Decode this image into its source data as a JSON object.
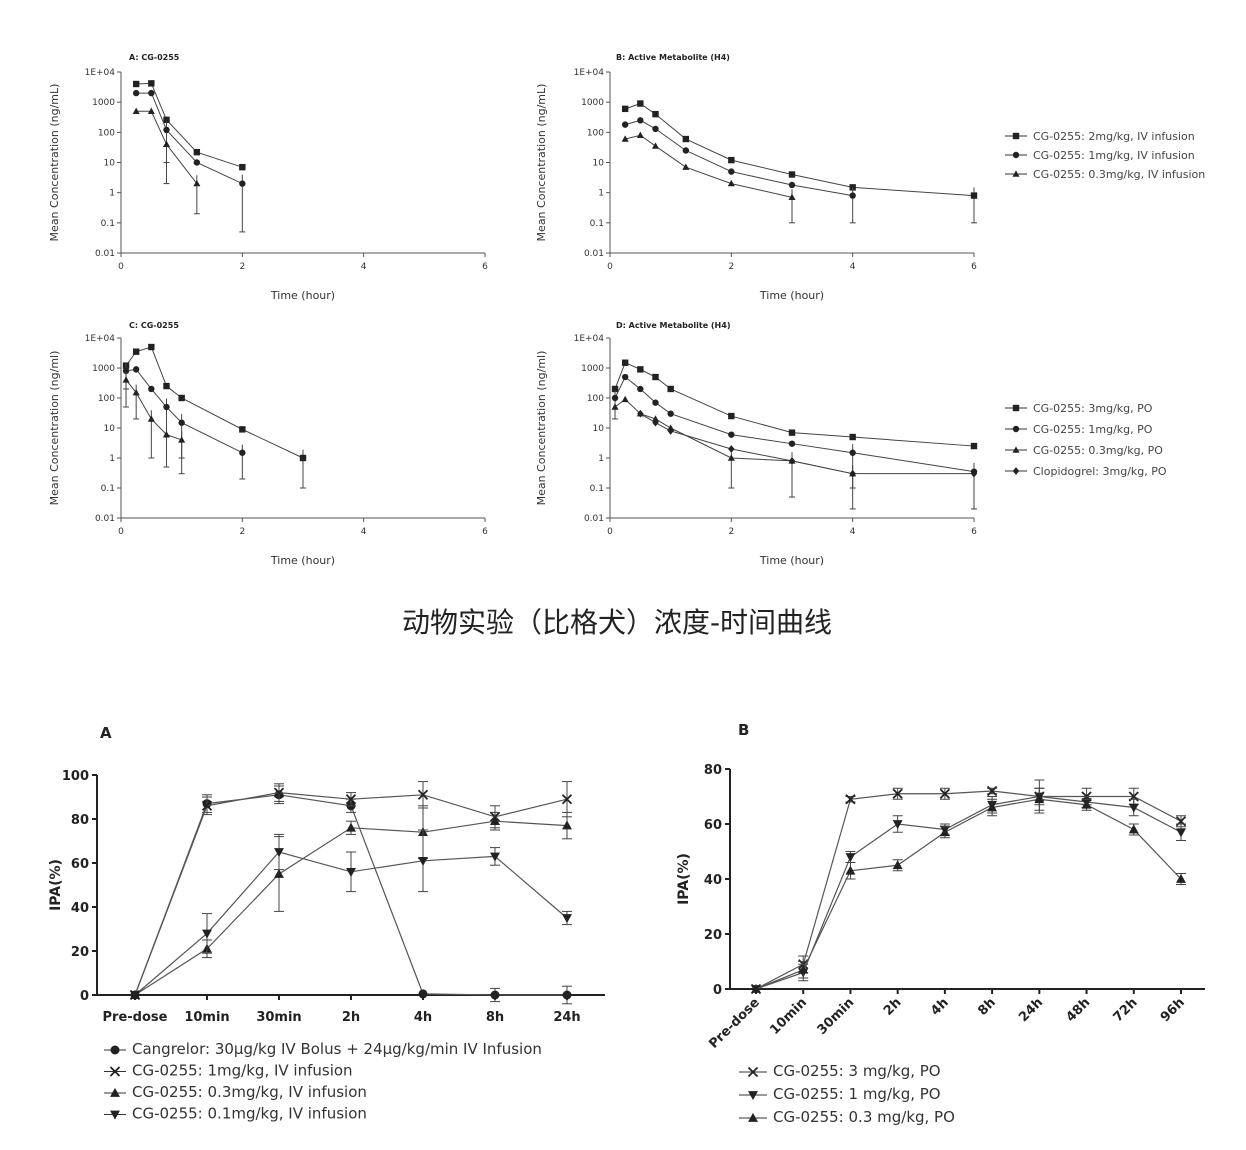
{
  "caption": "动物实验（比格犬）浓度-时间曲线",
  "chart_data": [
    {
      "panel": "A",
      "title": "A: CG-0255",
      "type": "line",
      "xlabel": "Time (hour)",
      "ylabel": "Mean Concentration (ng/mL)",
      "yscale": "log",
      "ylim": [
        0.01,
        10000
      ],
      "xlim": [
        0,
        6
      ],
      "xticks": [
        "0",
        "2",
        "4",
        "6"
      ],
      "yticks": [
        "0.01",
        "0.1",
        "1",
        "10",
        "100",
        "1000",
        "1E+04"
      ],
      "series": [
        {
          "name": "CG-0255: 2mg/kg, IV infusion",
          "marker": "square",
          "x": [
            0.25,
            0.5,
            0.75,
            1.25,
            2
          ],
          "y": [
            4000,
            4200,
            260,
            22,
            7
          ],
          "err": [
            0,
            0,
            0,
            0,
            0
          ]
        },
        {
          "name": "CG-0255: 1mg/kg, IV infusion",
          "marker": "circle",
          "x": [
            0.25,
            0.5,
            0.75,
            1.25,
            2
          ],
          "y": [
            2000,
            2000,
            120,
            10,
            2
          ],
          "err": [
            0,
            0,
            110,
            0,
            1.95
          ]
        },
        {
          "name": "CG-0255: 0.3mg/kg, IV infusion",
          "marker": "triangle",
          "x": [
            0.25,
            0.5,
            0.75,
            1.25,
            2
          ],
          "y": [
            500,
            500,
            40,
            2,
            0
          ],
          "err": [
            0,
            0,
            38,
            1.8,
            0
          ]
        }
      ]
    },
    {
      "panel": "B",
      "title": "B: Active Metabolite (H4)",
      "type": "line",
      "xlabel": "Time (hour)",
      "ylabel": "Mean Concentration (ng/mL)",
      "yscale": "log",
      "ylim": [
        0.01,
        10000
      ],
      "xlim": [
        0,
        6
      ],
      "xticks": [
        "0",
        "2",
        "4",
        "6"
      ],
      "yticks": [
        "0.01",
        "0.1",
        "1",
        "10",
        "100",
        "1000",
        "1E+04"
      ],
      "series": [
        {
          "name": "CG-0255: 2mg/kg, IV infusion",
          "marker": "square",
          "x": [
            0.25,
            0.5,
            0.75,
            1.25,
            2,
            3,
            4,
            6
          ],
          "y": [
            600,
            900,
            400,
            60,
            12,
            4,
            1.5,
            0.8
          ],
          "err": [
            0,
            0,
            0,
            0,
            0,
            0,
            0,
            0.7
          ]
        },
        {
          "name": "CG-0255: 1mg/kg, IV infusion",
          "marker": "circle",
          "x": [
            0.25,
            0.5,
            0.75,
            1.25,
            2,
            3,
            4,
            6
          ],
          "y": [
            180,
            250,
            130,
            25,
            5,
            1.8,
            0.8,
            0
          ],
          "err": [
            0,
            0,
            0,
            0,
            0,
            0,
            0.7,
            0
          ]
        },
        {
          "name": "CG-0255: 0.3mg/kg, IV infusion",
          "marker": "triangle",
          "x": [
            0.25,
            0.5,
            0.75,
            1.25,
            2,
            3
          ],
          "y": [
            60,
            80,
            35,
            7,
            2,
            0.7
          ],
          "err": [
            0,
            0,
            0,
            0,
            0,
            0.6
          ]
        }
      ]
    },
    {
      "panel": "C",
      "title": "C: CG-0255",
      "type": "line",
      "xlabel": "Time (hour)",
      "ylabel": "Mean Concentration (ng/ml)",
      "yscale": "log",
      "ylim": [
        0.01,
        10000
      ],
      "xlim": [
        0,
        6
      ],
      "xticks": [
        "0",
        "2",
        "4",
        "6"
      ],
      "yticks": [
        "0.01",
        "0.1",
        "1",
        "10",
        "100",
        "1000",
        "1E+04"
      ],
      "series": [
        {
          "name": "CG-0255: 3mg/kg, PO",
          "marker": "square",
          "x": [
            0.083,
            0.25,
            0.5,
            0.75,
            1,
            2,
            3
          ],
          "y": [
            1200,
            3500,
            5000,
            250,
            100,
            9,
            1
          ],
          "err": [
            0,
            0,
            0,
            0,
            0,
            0,
            0.9
          ]
        },
        {
          "name": "CG-0255: 1mg/kg, PO",
          "marker": "circle",
          "x": [
            0.083,
            0.25,
            0.5,
            0.75,
            1,
            2
          ],
          "y": [
            800,
            900,
            200,
            50,
            15,
            1.5
          ],
          "err": [
            600,
            0,
            0,
            45,
            14,
            1.3
          ]
        },
        {
          "name": "CG-0255: 0.3mg/kg, PO",
          "marker": "triangle",
          "x": [
            0.083,
            0.25,
            0.5,
            0.75,
            1
          ],
          "y": [
            400,
            150,
            20,
            6,
            4
          ],
          "err": [
            350,
            130,
            19,
            5.5,
            3.7
          ]
        }
      ]
    },
    {
      "panel": "D",
      "title": "D: Active Metabolite (H4)",
      "type": "line",
      "xlabel": "Time (hour)",
      "ylabel": "Mean Concentration (ng/ml)",
      "yscale": "log",
      "ylim": [
        0.01,
        10000
      ],
      "xlim": [
        0,
        6
      ],
      "xticks": [
        "0",
        "2",
        "4",
        "6"
      ],
      "yticks": [
        "0.01",
        "0.1",
        "1",
        "10",
        "100",
        "1000",
        "1E+04"
      ],
      "series": [
        {
          "name": "CG-0255: 3mg/kg, PO",
          "marker": "square",
          "x": [
            0.083,
            0.25,
            0.5,
            0.75,
            1,
            2,
            3,
            4,
            6
          ],
          "y": [
            200,
            1500,
            900,
            500,
            200,
            25,
            7,
            5,
            2.5
          ],
          "err": [
            0,
            0,
            0,
            0,
            0,
            0,
            0,
            0,
            0
          ]
        },
        {
          "name": "CG-0255: 1mg/kg, PO",
          "marker": "circle",
          "x": [
            0.083,
            0.25,
            0.5,
            0.75,
            1,
            2,
            3,
            4,
            6
          ],
          "y": [
            100,
            500,
            200,
            70,
            30,
            6,
            3,
            1.5,
            0.35
          ],
          "err": [
            80,
            0,
            0,
            0,
            0,
            0,
            0,
            1.4,
            0.33
          ]
        },
        {
          "name": "CG-0255: 0.3mg/kg, PO",
          "marker": "triangle",
          "x": [
            0.083,
            0.25,
            0.5,
            0.75,
            1,
            2,
            3,
            4
          ],
          "y": [
            50,
            90,
            30,
            20,
            10,
            1,
            0.8,
            0.3
          ],
          "err": [
            0,
            0,
            0,
            0,
            0,
            0.9,
            0.75,
            0.28
          ]
        },
        {
          "name": "Clopidogrel: 3mg/kg, PO",
          "marker": "diamond",
          "x": [
            0.5,
            0.75,
            1,
            2,
            3,
            4,
            6
          ],
          "y": [
            30,
            15,
            8,
            2,
            0.8,
            0.3,
            0.3
          ],
          "err": [
            0,
            0,
            0,
            0,
            0,
            0,
            0
          ]
        }
      ]
    },
    {
      "panel": "A",
      "title": "A",
      "type": "line",
      "xlabel": "",
      "ylabel": "IPA(%)",
      "ylim": [
        0,
        100
      ],
      "categories": [
        "Pre-dose",
        "10min",
        "30min",
        "2h",
        "4h",
        "8h",
        "24h"
      ],
      "yticks": [
        "0",
        "20",
        "40",
        "60",
        "80",
        "100"
      ],
      "series": [
        {
          "name": "Cangrelor: 30μg/kg IV Bolus + 24μg/kg/min IV Infusion",
          "marker": "circle",
          "values": [
            0,
            87,
            91,
            86,
            0.5,
            0,
            0
          ],
          "err": [
            0,
            4,
            4,
            3,
            0,
            3,
            4
          ]
        },
        {
          "name": "CG-0255: 1mg/kg, IV infusion",
          "marker": "x",
          "values": [
            0,
            86,
            92,
            89,
            91,
            81,
            89
          ],
          "err": [
            0,
            4,
            4,
            3,
            6,
            5,
            8
          ]
        },
        {
          "name": "CG-0255: 0.3mg/kg, IV infusion",
          "marker": "triangle",
          "values": [
            0,
            21,
            55,
            76,
            74,
            79,
            77
          ],
          "err": [
            0,
            4,
            17,
            3,
            12,
            4,
            6
          ]
        },
        {
          "name": "CG-0255: 0.1mg/kg, IV infusion",
          "marker": "triangle-down",
          "values": [
            0,
            28,
            65,
            56,
            61,
            63,
            35
          ],
          "err": [
            0,
            9,
            8,
            9,
            14,
            4,
            3
          ]
        }
      ]
    },
    {
      "panel": "B",
      "title": "B",
      "type": "line",
      "xlabel": "",
      "ylabel": "IPA(%)",
      "ylim": [
        0,
        80
      ],
      "categories": [
        "Pre-dose",
        "10min",
        "30min",
        "2h",
        "4h",
        "8h",
        "24h",
        "48h",
        "72h",
        "96h"
      ],
      "yticks": [
        "0",
        "20",
        "40",
        "60",
        "80"
      ],
      "series": [
        {
          "name": "CG-0255: 3 mg/kg, PO",
          "marker": "x",
          "values": [
            0,
            9,
            69,
            71,
            71,
            72,
            70,
            70,
            70,
            61
          ],
          "err": [
            0,
            3,
            1,
            2,
            2,
            1,
            3,
            3,
            3,
            2
          ]
        },
        {
          "name": "CG-0255: 1 mg/kg, PO",
          "marker": "triangle-down",
          "values": [
            0,
            6,
            48,
            60,
            58,
            67,
            70,
            68,
            66,
            57
          ],
          "err": [
            0,
            3,
            2,
            3,
            2,
            3,
            6,
            2,
            3,
            3
          ]
        },
        {
          "name": "CG-0255: 0.3 mg/kg, PO",
          "marker": "triangle",
          "values": [
            0,
            7,
            43,
            45,
            57,
            66,
            69,
            67,
            58,
            40
          ],
          "err": [
            0,
            3,
            3,
            2,
            2,
            3,
            4,
            2,
            2,
            2
          ]
        }
      ]
    }
  ]
}
